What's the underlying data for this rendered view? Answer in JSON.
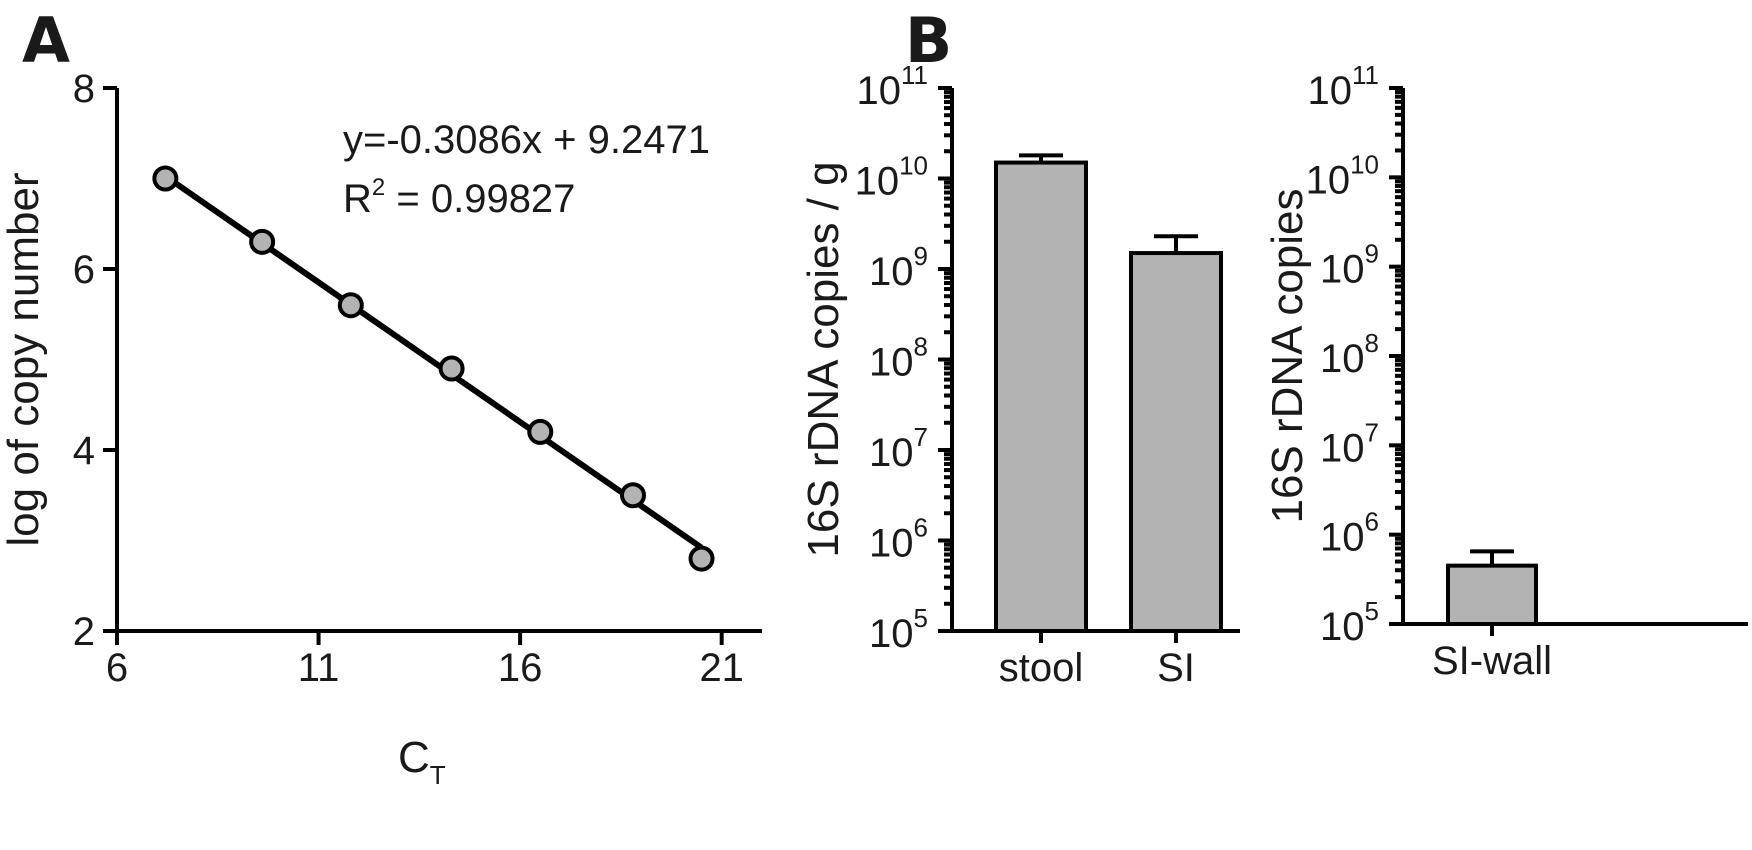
{
  "chart_data": [
    {
      "id": "A",
      "type": "scatter",
      "panel_label": "A",
      "xlabel_main": "C",
      "xlabel_sub": "T",
      "ylabel": "log of copy number",
      "xlim": [
        6,
        22
      ],
      "ylim": [
        2,
        8
      ],
      "xticks": [
        6,
        11,
        16,
        21
      ],
      "yticks": [
        2,
        4,
        6,
        8
      ],
      "points": [
        {
          "x": 7.2,
          "y": 7.0
        },
        {
          "x": 9.6,
          "y": 6.3
        },
        {
          "x": 11.8,
          "y": 5.6
        },
        {
          "x": 14.3,
          "y": 4.9
        },
        {
          "x": 16.5,
          "y": 4.2
        },
        {
          "x": 18.8,
          "y": 3.5
        },
        {
          "x": 20.5,
          "y": 2.8
        }
      ],
      "fit": {
        "slope": -0.3086,
        "intercept": 9.2471,
        "x_range": [
          7.2,
          20.5
        ]
      },
      "equation": "y=-0.3086x + 9.2471",
      "r2_main": "R",
      "r2_sup": "2",
      "r2_value": " = 0.99827"
    },
    {
      "id": "B1",
      "type": "bar",
      "panel_label": "B",
      "ylabel": "16S rDNA copies / g",
      "yscale": "log",
      "ylim_exp": [
        5,
        11
      ],
      "ytick_base": "10",
      "ytick_exponents": [
        "5",
        "6",
        "7",
        "8",
        "9",
        "10",
        "11"
      ],
      "categories": [
        "stool",
        "SI"
      ],
      "values": [
        15000000000,
        1500000000
      ],
      "error_upper": [
        18000000000,
        2300000000
      ]
    },
    {
      "id": "B2",
      "type": "bar",
      "ylabel": "16S rDNA copies",
      "yscale": "log",
      "ylim_exp": [
        5,
        11
      ],
      "ytick_base": "10",
      "ytick_exponents": [
        "5",
        "6",
        "7",
        "8",
        "9",
        "10",
        "11"
      ],
      "categories": [
        "SI-wall"
      ],
      "values": [
        450000
      ],
      "error_upper": [
        650000
      ]
    }
  ]
}
